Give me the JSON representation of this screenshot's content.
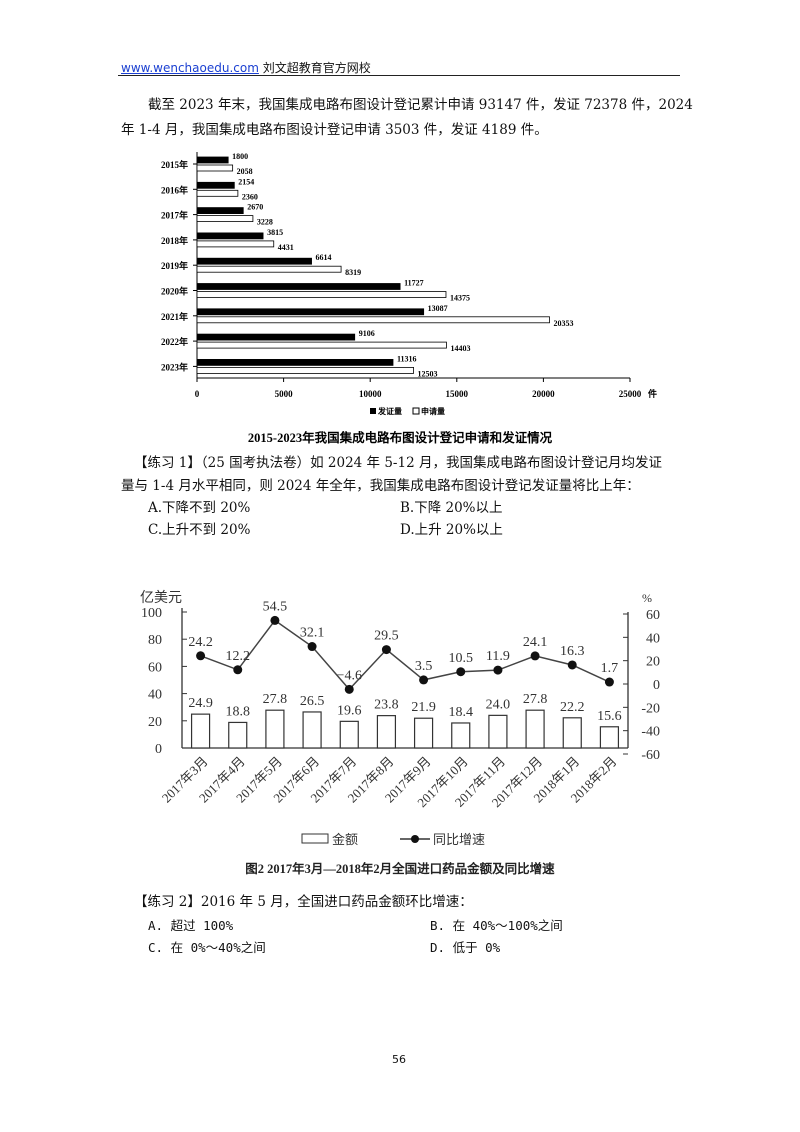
{
  "header": {
    "link": "www.wenchaoedu.com",
    "org": "刘文超教育官方网校"
  },
  "para1": {
    "line1": "截至 2023 年末，我国集成电路布图设计登记累计申请 93147 件，发证 72378 件，2024",
    "line2": "年 1-4 月，我国集成电路布图设计登记申请 3503 件，发证 4189 件。"
  },
  "chart_data": [
    {
      "type": "bar",
      "orientation": "horizontal",
      "title": "2015-2023年我国集成电路布图设计登记申请和发证情况",
      "categories": [
        "2015年",
        "2016年",
        "2017年",
        "2018年",
        "2019年",
        "2020年",
        "2021年",
        "2022年",
        "2023年"
      ],
      "series": [
        {
          "name": "发证量",
          "color": "#000000",
          "values": [
            1800,
            2154,
            2670,
            3815,
            6614,
            11727,
            13087,
            9106,
            11316
          ]
        },
        {
          "name": "申请量",
          "color": "#ffffff",
          "values": [
            2058,
            2360,
            3228,
            4431,
            8319,
            14375,
            20353,
            14403,
            12503
          ]
        }
      ],
      "xlim": [
        0,
        25000
      ],
      "xticks": [
        "0",
        "5000",
        "10000",
        "15000",
        "20000",
        "25000"
      ],
      "xunit": "件",
      "legend": "bottom"
    },
    {
      "type": "bar+line",
      "title": "图2  2017年3月—2018年2月全国进口药品金额及同比增速",
      "categories": [
        "2017年3月",
        "2017年4月",
        "2017年5月",
        "2017年6月",
        "2017年7月",
        "2017年8月",
        "2017年9月",
        "2017年10月",
        "2017年11月",
        "2017年12月",
        "2018年1月",
        "2018年2月"
      ],
      "series": [
        {
          "name": "金额",
          "type": "bar",
          "axis": "left",
          "values": [
            24.9,
            18.8,
            27.8,
            26.5,
            19.6,
            23.8,
            21.9,
            18.4,
            24.0,
            27.8,
            22.2,
            15.6
          ]
        },
        {
          "name": "同比增速",
          "type": "line",
          "axis": "right",
          "values": [
            24.2,
            12.2,
            54.5,
            32.1,
            -4.6,
            29.5,
            3.5,
            10.5,
            11.9,
            24.1,
            16.3,
            1.7
          ]
        }
      ],
      "ylabel_left": "亿美元",
      "ylim_left": [
        0,
        100
      ],
      "yticks_left": [
        "0",
        "20",
        "40",
        "60",
        "80",
        "100"
      ],
      "ylabel_right": "%",
      "ylim_right": [
        -60,
        60
      ],
      "yticks_right": [
        "-60",
        "-40",
        "-20",
        "0",
        "20",
        "40",
        "60"
      ],
      "legend": "bottom"
    }
  ],
  "ex1": {
    "q1": "【练习 1】（25 国考执法卷）如 2024 年 5-12 月，我国集成电路布图设计登记月均发证",
    "q2": "量与 1-4 月水平相同，则 2024 年全年，我国集成电路布图设计登记发证量将比上年：",
    "options": [
      "A.下降不到 20%",
      "B.下降 20%以上",
      "C.上升不到 20%",
      "D.上升 20%以上"
    ]
  },
  "ex2": {
    "q": "【练习 2】2016 年 5 月，全国进口药品金额环比增速：",
    "options": [
      "A.  超过 100%",
      "B.  在 40%～100%之间",
      "C.  在 0%～40%之间",
      "D.  低于 0%"
    ]
  },
  "page_number": "56"
}
